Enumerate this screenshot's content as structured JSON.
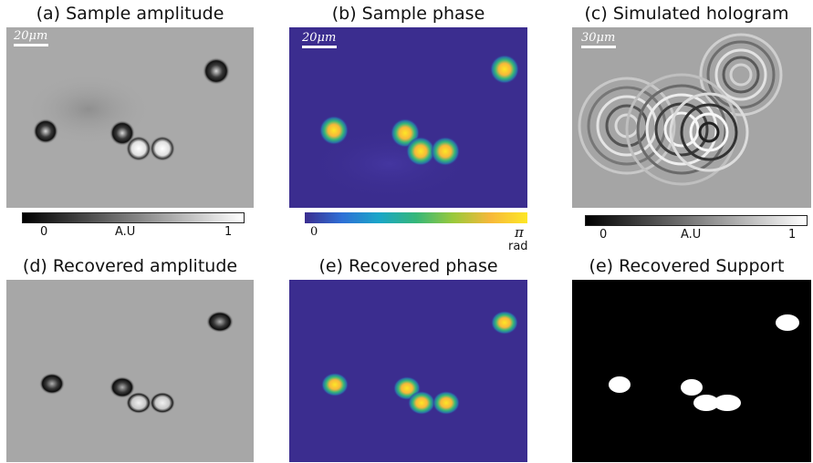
{
  "panels": {
    "a": {
      "title": "(a) Sample amplitude",
      "scalebar": "20μm"
    },
    "b": {
      "title": "(b) Sample phase",
      "scalebar": "20μm"
    },
    "c": {
      "title": "(c) Simulated hologram",
      "scalebar": "30μm"
    },
    "d": {
      "title": "(d) Recovered amplitude"
    },
    "e": {
      "title": "(e) Recovered phase"
    },
    "f": {
      "title": "(e) Recovered Support"
    }
  },
  "colorbars": {
    "amplitude_a": {
      "min": "0",
      "label": "A.U",
      "max": "1"
    },
    "phase_b": {
      "min": "0",
      "max": "π",
      "unit": "rad"
    },
    "amplitude_c": {
      "min": "0",
      "label": "A.U",
      "max": "1"
    }
  },
  "colors": {
    "gray_bg": "#a7a7a7",
    "phase_bg": "#3b2d8f",
    "support_bg": "#000000",
    "support_fg": "#ffffff"
  }
}
